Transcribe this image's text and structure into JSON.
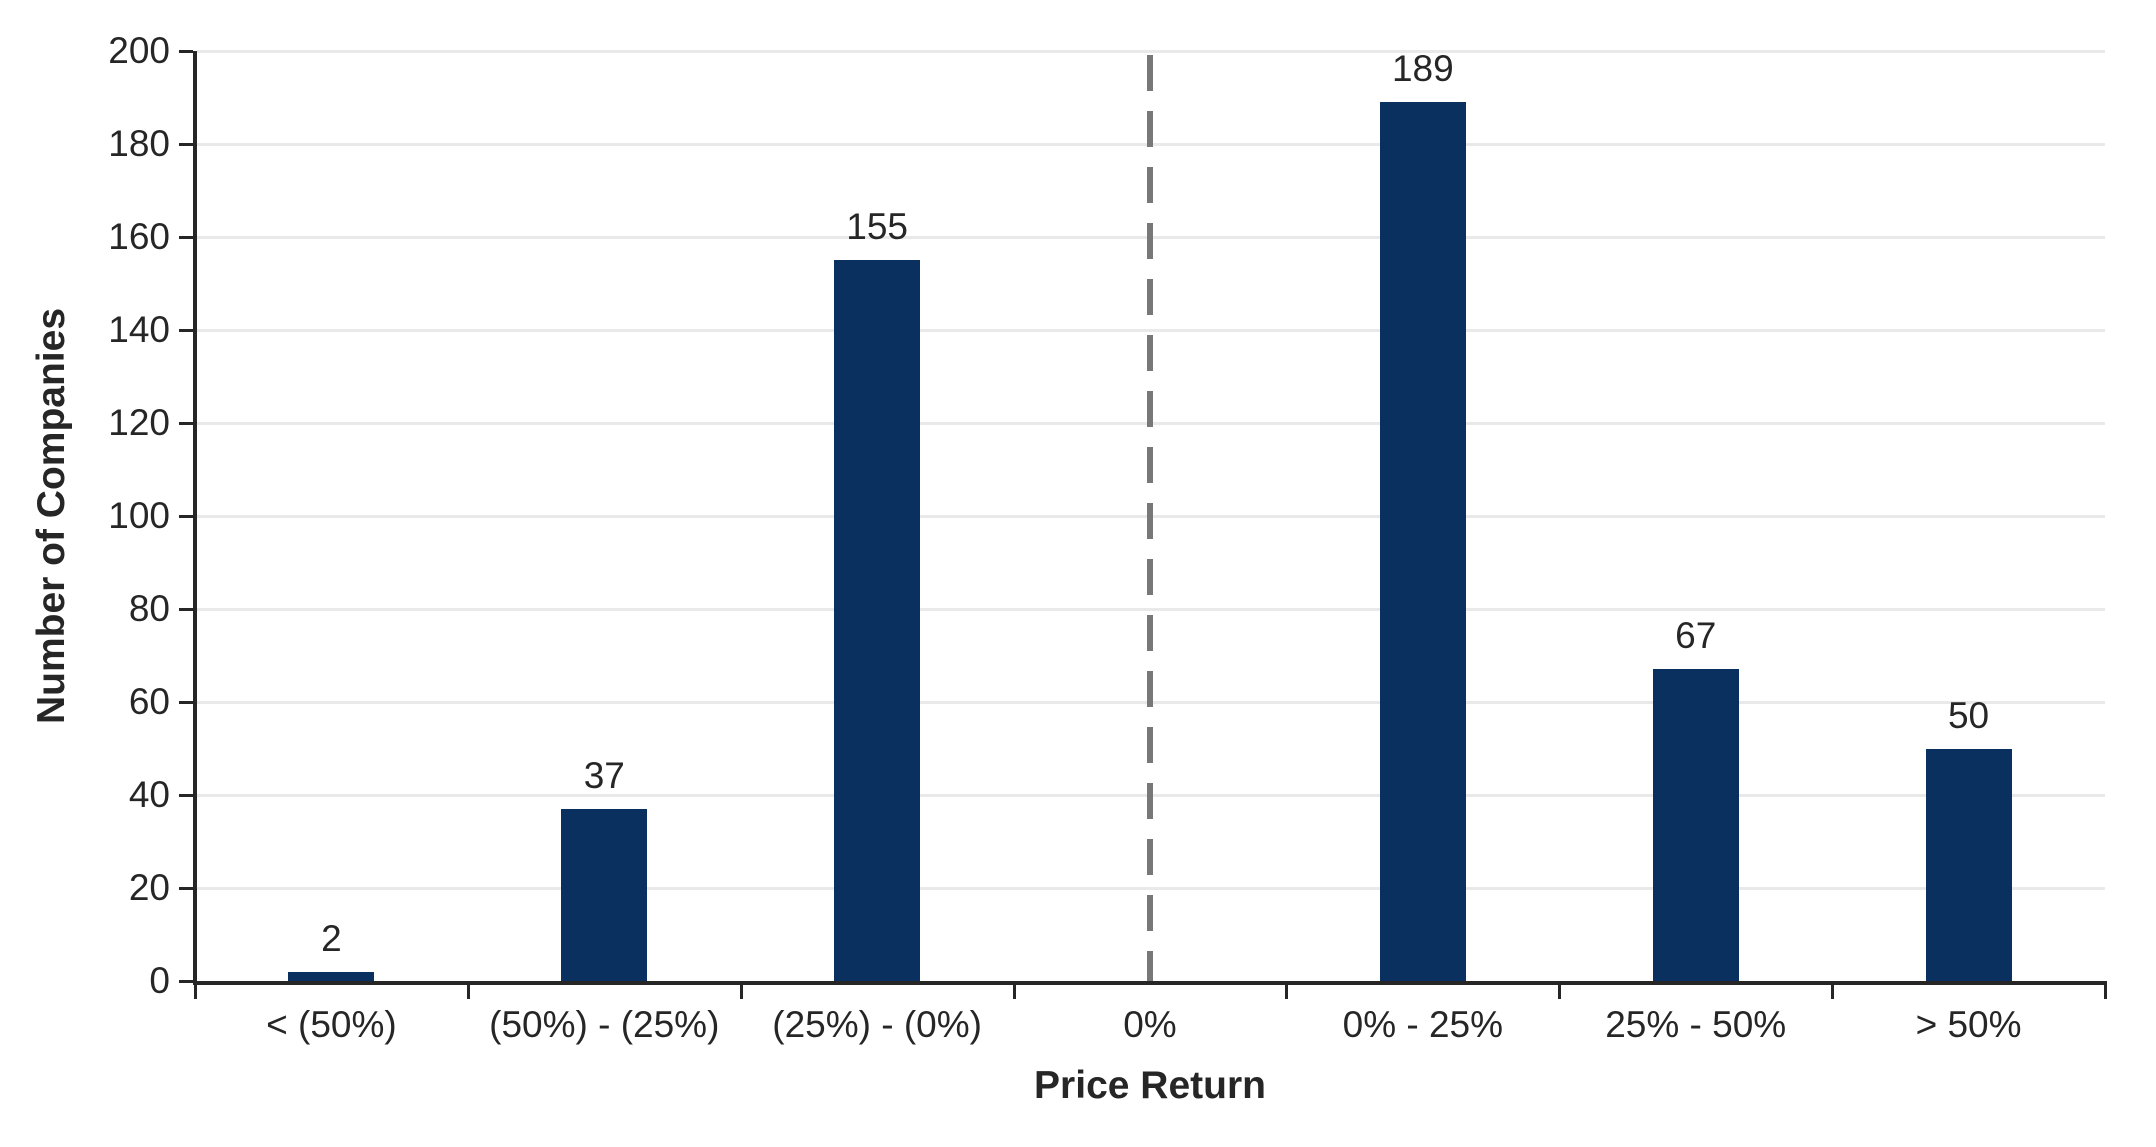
{
  "chart_data": {
    "type": "bar",
    "title": "",
    "categories": [
      "< (50%)",
      "(50%) - (25%)",
      "(25%) - (0%)",
      "0%",
      "0% - 25%",
      "25% - 50%",
      "> 50%"
    ],
    "values": [
      2,
      37,
      155,
      null,
      189,
      67,
      50
    ],
    "xlabel": "Price Return",
    "ylabel": "Number of Companies",
    "ylim": [
      0,
      200
    ],
    "yticks": [
      0,
      20,
      40,
      60,
      80,
      100,
      120,
      140,
      160,
      180,
      200
    ],
    "grid": "horizontal gridlines on, vertical off",
    "legend": "none",
    "reference_line": {
      "category": "0%",
      "style": "dashed",
      "color": "#787878"
    },
    "colors": {
      "bar": "#0a3060",
      "grid": "#e9e9e9",
      "axis": "#262626",
      "text": "#262626",
      "background": "#ffffff"
    }
  }
}
